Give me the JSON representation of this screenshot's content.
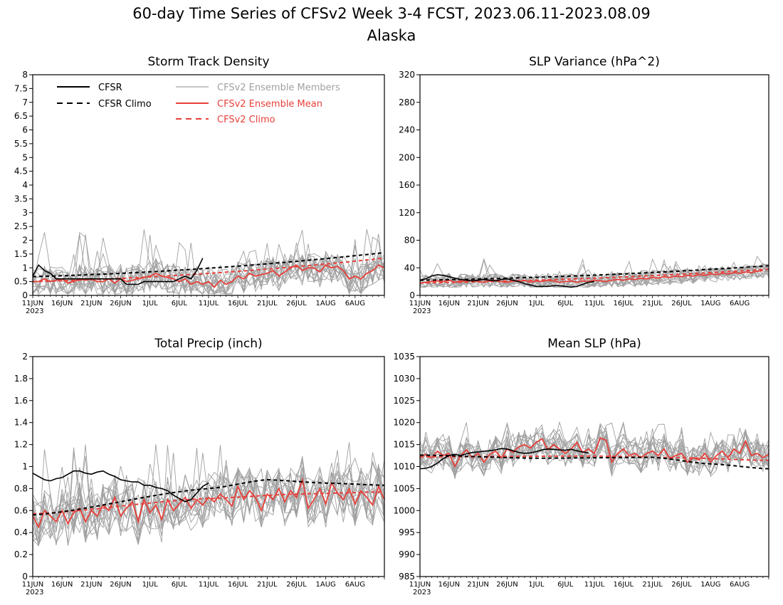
{
  "figure": {
    "title_line1": "60-day Time Series of CFSv2 Week 3-4 FCST, 2023.06.11-2023.08.09",
    "title_line2": "Alaska"
  },
  "colors": {
    "cfsr": "#000000",
    "members": "#a0a0a0",
    "ensemble_mean": "#e8403a",
    "cfsv2_climo": "#e8403a"
  },
  "legend": {
    "placement": "top-left of first panel",
    "items": [
      {
        "label": "CFSR",
        "color": "#000000",
        "dash": false
      },
      {
        "label": "CFSR Climo",
        "color": "#000000",
        "dash": true
      },
      {
        "label": "CFSv2 Ensemble Members",
        "color": "#a0a0a0",
        "dash": false
      },
      {
        "label": "CFSv2 Ensemble Mean",
        "color": "#e8403a",
        "dash": false
      },
      {
        "label": "CFSv2 Climo",
        "color": "#e8403a",
        "dash": true
      }
    ]
  },
  "x_axis": {
    "ticks": [
      "11JUN",
      "16JUN",
      "21JUN",
      "26JUN",
      "1JUL",
      "6JUL",
      "11JUL",
      "16JUL",
      "21JUL",
      "26JUL",
      "1AUG",
      "6AUG"
    ],
    "year_label": "2023"
  },
  "chart_data": [
    {
      "type": "line",
      "title": "Storm Track Density",
      "ylim": [
        0,
        8
      ],
      "yticks": [
        "0",
        "0.5",
        "1",
        "1.5",
        "2",
        "2.5",
        "3",
        "3.5",
        "4",
        "4.5",
        "5",
        "5.5",
        "6",
        "6.5",
        "7",
        "7.5",
        "8"
      ],
      "ytick_values": [
        0,
        0.5,
        1,
        1.5,
        2,
        2.5,
        3,
        3.5,
        4,
        4.5,
        5,
        5.5,
        6,
        6.5,
        7,
        7.5,
        8
      ],
      "grid": false,
      "series": [
        {
          "name": "CFSR",
          "values": [
            0.7,
            1.1,
            0.9,
            0.8,
            0.6,
            0.6,
            0.6,
            0.6,
            0.6,
            0.6,
            0.6,
            0.6,
            0.6,
            0.6,
            0.6,
            0.6,
            0.4,
            0.4,
            0.4,
            0.5,
            0.5,
            0.5,
            0.5,
            0.5,
            0.5,
            0.6,
            0.7,
            0.6,
            0.9,
            1.35
          ]
        },
        {
          "name": "CFSR Climo",
          "start": 0.68,
          "end": 1.55
        },
        {
          "name": "CFSv2 Ensemble Mean",
          "values": [
            0.5,
            0.5,
            0.6,
            0.5,
            0.55,
            0.6,
            0.45,
            0.5,
            0.6,
            0.55,
            0.6,
            0.5,
            0.5,
            0.6,
            0.45,
            0.6,
            0.5,
            0.55,
            0.6,
            0.65,
            0.7,
            0.8,
            0.7,
            0.65,
            0.6,
            0.5,
            0.6,
            0.4,
            0.5,
            0.4,
            0.5,
            0.3,
            0.55,
            0.4,
            0.5,
            0.7,
            0.6,
            0.8,
            0.7,
            0.75,
            0.8,
            0.9,
            0.7,
            0.85,
            1.0,
            1.1,
            0.9,
            1.0,
            1.0,
            0.85,
            1.1,
            1.0,
            1.05,
            0.9,
            0.6,
            0.7,
            0.6,
            0.8,
            0.9,
            1.1,
            1.0
          ]
        },
        {
          "name": "CFSv2 Climo",
          "start": 0.5,
          "end": 1.35
        },
        {
          "name": "CFSv2 Ensemble Members",
          "count": 16,
          "spread": [
            0.05,
            2.6
          ]
        }
      ]
    },
    {
      "type": "line",
      "title": "SLP Variance (hPa^2)",
      "ylim": [
        0,
        320
      ],
      "yticks": [
        "0",
        "40",
        "80",
        "120",
        "160",
        "200",
        "240",
        "280",
        "320"
      ],
      "ytick_values": [
        0,
        40,
        80,
        120,
        160,
        200,
        240,
        280,
        320
      ],
      "grid": false,
      "series": [
        {
          "name": "CFSR",
          "values": [
            22,
            24,
            28,
            30,
            29,
            27,
            25,
            23,
            22,
            21,
            22,
            23,
            22,
            21,
            23,
            24,
            22,
            20,
            17,
            15,
            13,
            13,
            13,
            14,
            14,
            13,
            12,
            13,
            16,
            19,
            20
          ]
        },
        {
          "name": "CFSR Climo",
          "start": 22,
          "end": 43
        },
        {
          "name": "CFSv2 Ensemble Mean",
          "values": [
            18,
            19,
            20,
            21,
            20,
            22,
            19,
            21,
            20,
            22,
            20,
            19,
            21,
            22,
            20,
            19,
            21,
            20,
            22,
            19,
            21,
            20,
            22,
            21,
            19,
            20,
            21,
            19,
            21,
            20,
            22,
            21,
            20,
            22,
            23,
            22,
            24,
            23,
            25,
            24,
            26,
            25,
            27,
            26,
            28,
            27,
            29,
            28,
            30,
            29,
            31,
            30,
            32,
            31,
            33,
            32,
            34,
            33,
            35,
            36
          ]
        },
        {
          "name": "CFSv2 Climo",
          "start": 18,
          "end": 38
        },
        {
          "name": "CFSv2 Ensemble Members",
          "count": 16,
          "spread": [
            12,
            60
          ]
        }
      ]
    },
    {
      "type": "line",
      "title": "Total Precip (inch)",
      "ylim": [
        0,
        2
      ],
      "yticks": [
        "0",
        "0.2",
        "0.4",
        "0.6",
        "0.8",
        "1",
        "1.2",
        "1.4",
        "1.6",
        "1.8",
        "2"
      ],
      "ytick_values": [
        0,
        0.2,
        0.4,
        0.6,
        0.8,
        1,
        1.2,
        1.4,
        1.6,
        1.8,
        2
      ],
      "grid": false,
      "series": [
        {
          "name": "CFSR",
          "values": [
            0.94,
            0.91,
            0.88,
            0.87,
            0.89,
            0.9,
            0.93,
            0.96,
            0.96,
            0.94,
            0.93,
            0.95,
            0.96,
            0.93,
            0.91,
            0.88,
            0.87,
            0.86,
            0.86,
            0.83,
            0.83,
            0.81,
            0.8,
            0.78,
            0.74,
            0.71,
            0.68,
            0.7,
            0.76,
            0.82,
            0.85
          ]
        },
        {
          "name": "CFSR Climo",
          "points": [
            [
              0,
              0.56
            ],
            [
              30,
              0.8
            ],
            [
              40,
              0.88
            ],
            [
              50,
              0.85
            ],
            [
              60,
              0.83
            ]
          ]
        },
        {
          "name": "CFSv2 Ensemble Mean",
          "values": [
            0.55,
            0.45,
            0.6,
            0.55,
            0.5,
            0.6,
            0.48,
            0.58,
            0.62,
            0.5,
            0.6,
            0.55,
            0.65,
            0.6,
            0.72,
            0.55,
            0.62,
            0.68,
            0.5,
            0.7,
            0.58,
            0.65,
            0.52,
            0.7,
            0.6,
            0.66,
            0.72,
            0.62,
            0.7,
            0.65,
            0.72,
            0.68,
            0.75,
            0.7,
            0.64,
            0.82,
            0.7,
            0.78,
            0.72,
            0.6,
            0.75,
            0.7,
            0.8,
            0.68,
            0.78,
            0.72,
            0.88,
            0.62,
            0.7,
            0.8,
            0.66,
            0.85,
            0.76,
            0.7,
            0.8,
            0.66,
            0.78,
            0.72,
            0.65,
            0.82,
            0.7
          ]
        },
        {
          "name": "CFSv2 Climo",
          "points": [
            [
              0,
              0.57
            ],
            [
              30,
              0.71
            ],
            [
              45,
              0.75
            ],
            [
              60,
              0.77
            ]
          ]
        },
        {
          "name": "CFSv2 Ensemble Members",
          "count": 16,
          "spread": [
            0.28,
            1.28
          ]
        }
      ]
    },
    {
      "type": "line",
      "title": "Mean SLP (hPa)",
      "ylim": [
        985,
        1035
      ],
      "yticks": [
        "985",
        "990",
        "995",
        "1000",
        "1005",
        "1010",
        "1015",
        "1020",
        "1025",
        "1030",
        "1035"
      ],
      "ytick_values": [
        985,
        990,
        995,
        1000,
        1005,
        1010,
        1015,
        1020,
        1025,
        1030,
        1035
      ],
      "grid": false,
      "series": [
        {
          "name": "CFSR",
          "values": [
            1009.5,
            1009.6,
            1010.0,
            1010.8,
            1011.8,
            1012.5,
            1012.8,
            1012.5,
            1012.9,
            1013.2,
            1013.3,
            1013.5,
            1013.6,
            1013.8,
            1014.1,
            1014.0,
            1013.6,
            1013.2,
            1013.0,
            1013.1,
            1013.4,
            1013.8,
            1014.0,
            1013.9,
            1013.8,
            1013.7,
            1013.9,
            1013.6,
            1013.3,
            1013.1
          ]
        },
        {
          "name": "CFSR Climo",
          "points": [
            [
              0,
              1012.6
            ],
            [
              20,
              1011.9
            ],
            [
              40,
              1012.1
            ],
            [
              50,
              1010.6
            ],
            [
              60,
              1009.5
            ]
          ]
        },
        {
          "name": "CFSv2 Ensemble Mean",
          "values": [
            1012.0,
            1012.8,
            1012.0,
            1013.5,
            1012.5,
            1013.0,
            1010.0,
            1012.5,
            1013.8,
            1012.0,
            1013.0,
            1011.0,
            1012.8,
            1013.5,
            1012.0,
            1014.0,
            1013.2,
            1014.5,
            1015.0,
            1014.2,
            1015.5,
            1016.3,
            1013.8,
            1015.0,
            1014.0,
            1013.0,
            1014.0,
            1015.5,
            1013.2,
            1014.0,
            1013.0,
            1016.5,
            1016.0,
            1011.0,
            1013.0,
            1014.0,
            1012.5,
            1013.0,
            1012.0,
            1013.0,
            1013.5,
            1012.5,
            1014.0,
            1011.8,
            1012.5,
            1013.0,
            1011.0,
            1012.0,
            1011.5,
            1013.0,
            1011.0,
            1012.5,
            1013.5,
            1012.0,
            1014.0,
            1013.0,
            1015.8,
            1012.5,
            1013.0,
            1012.0,
            1012.8
          ]
        },
        {
          "name": "CFSv2 Climo",
          "points": [
            [
              0,
              1012.2
            ],
            [
              30,
              1012.4
            ],
            [
              45,
              1012.0
            ],
            [
              60,
              1011.4
            ]
          ]
        },
        {
          "name": "CFSv2 Ensemble Members",
          "count": 16,
          "spread": [
            1005,
            1021
          ]
        }
      ]
    }
  ]
}
